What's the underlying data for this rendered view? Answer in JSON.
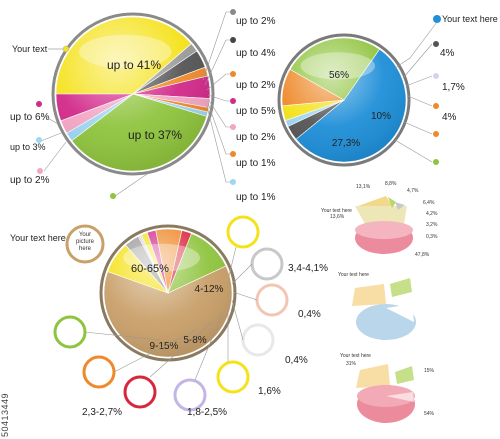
{
  "colors": {
    "yellow": "#f5e21c",
    "green": "#8fc43e",
    "blue": "#1f8fd8",
    "tan": "#c9a06a",
    "orange": "#ee8a2b",
    "red": "#d8263c",
    "magenta": "#d22a8a",
    "pink": "#f3a6c4",
    "lightblue": "#9fd6f2",
    "gray": "#9a9a9a",
    "darkgray": "#555555",
    "cream": "#f7d99b",
    "rose": "#ec8b9c",
    "paleblue": "#b9d6ea",
    "lime": "#b6d86a"
  },
  "chart_data": [
    {
      "type": "pie",
      "name": "pie-1",
      "slices": [
        {
          "label": "up to 41%",
          "value": 41,
          "color": "yellow",
          "display": "up to 41%"
        },
        {
          "label": "up to 2%",
          "value": 2,
          "color": "gray"
        },
        {
          "label": "up to 4%",
          "value": 4,
          "color": "darkgray"
        },
        {
          "label": "up to 2%",
          "value": 2,
          "color": "orange"
        },
        {
          "label": "up to 5%",
          "value": 5,
          "color": "magenta"
        },
        {
          "label": "up to 2%",
          "value": 2,
          "color": "pink"
        },
        {
          "label": "up to 1%",
          "value": 1,
          "color": "orange"
        },
        {
          "label": "up to 1%",
          "value": 1,
          "color": "lightblue"
        },
        {
          "label": "up to 37%",
          "value": 37,
          "color": "green",
          "display": "up to 37%"
        },
        {
          "label": "up to 2%",
          "value": 2,
          "color": "lightblue"
        },
        {
          "label": "up to 3%",
          "value": 3,
          "color": "pink"
        },
        {
          "label": "up to 6%",
          "value": 6,
          "color": "magenta"
        }
      ],
      "callouts": {
        "right": [
          "up to 2%",
          "up to 4%",
          "up to 2%",
          "up to 5%",
          "up to 2%",
          "up to 1%",
          "up to 1%"
        ],
        "left": [
          "up to 6%",
          "up to 3%",
          "up to 2%"
        ],
        "title_label": "Your text"
      }
    },
    {
      "type": "pie",
      "name": "pie-2",
      "slices": [
        {
          "label": "56%",
          "value": 56,
          "color": "blue"
        },
        {
          "label": "4%",
          "value": 4,
          "color": "darkgray"
        },
        {
          "label": "1,7%",
          "value": 1.7,
          "color": "lightblue"
        },
        {
          "label": "4%",
          "value": 4,
          "color": "yellow"
        },
        {
          "label": "10%",
          "value": 10,
          "color": "orange"
        },
        {
          "label": "27,3%",
          "value": 27.3,
          "color": "green"
        }
      ],
      "callouts": {
        "right": [
          "4%",
          "1,7%",
          "4%"
        ],
        "title_label": "Your text here"
      }
    },
    {
      "type": "pie",
      "name": "pie-3",
      "slices": [
        {
          "label": "60-65%",
          "value": 62,
          "color": "tan"
        },
        {
          "label": "4-12%",
          "value": 8,
          "color": "yellow"
        },
        {
          "label": "3,4-4,1%",
          "value": 3.8,
          "color": "gray"
        },
        {
          "label": "0,4%",
          "value": 0.4,
          "color": "pink"
        },
        {
          "label": "0,4%",
          "value": 0.4,
          "color": "lightblue"
        },
        {
          "label": "1,6%",
          "value": 1.6,
          "color": "yellow"
        },
        {
          "label": "1,8-2,5%",
          "value": 2.2,
          "color": "magenta"
        },
        {
          "label": "5-8%",
          "value": 6.5,
          "color": "orange"
        },
        {
          "label": "2,3-2,7%",
          "value": 2.5,
          "color": "red"
        },
        {
          "label": "9-15%",
          "value": 12,
          "color": "green"
        }
      ],
      "callouts": {
        "labels": [
          "3,4-4,1%",
          "0,4%",
          "0,4%",
          "1,6%",
          "1,8-2,5%",
          "2,3-2,7%"
        ],
        "title_label": "Your text here",
        "badge_label": "Your picture here"
      }
    }
  ],
  "mini": {
    "a_label": "Your text here",
    "a_values": [
      "13,1%",
      "8,8%",
      "4,7%",
      "6,4%",
      "4,2%",
      "3,2%",
      "0,3%",
      "13,6%",
      "47,8%"
    ],
    "b_label": "Your text here",
    "c_label": "Your text here",
    "c_values": [
      "31%",
      "15%",
      "54%"
    ]
  },
  "watermark": "50413449"
}
